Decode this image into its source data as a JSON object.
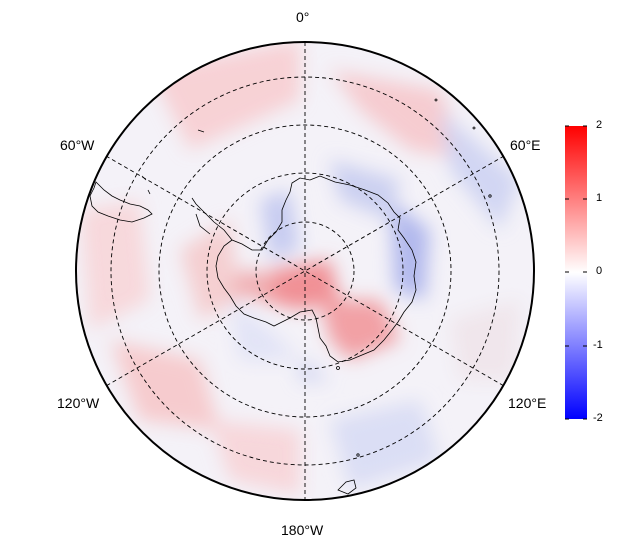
{
  "map": {
    "projection": "south-polar-stereographic",
    "graticule_style": "dashed",
    "labels": {
      "top": "0°",
      "upper_left": "60°W",
      "upper_right": "60°E",
      "lower_left": "120°W",
      "lower_right": "120°E",
      "bottom": "180°W"
    }
  },
  "colorbar": {
    "ticks": [
      "2",
      "1",
      "0",
      "-1",
      "-2"
    ],
    "colors": {
      "high": "#ff0000",
      "mid": "#ffffff",
      "low": "#0000ff"
    }
  },
  "field": {
    "description_colors": {
      "positive": "#ff0000",
      "negative": "#0000ff",
      "neutral": "#ffffff"
    }
  }
}
